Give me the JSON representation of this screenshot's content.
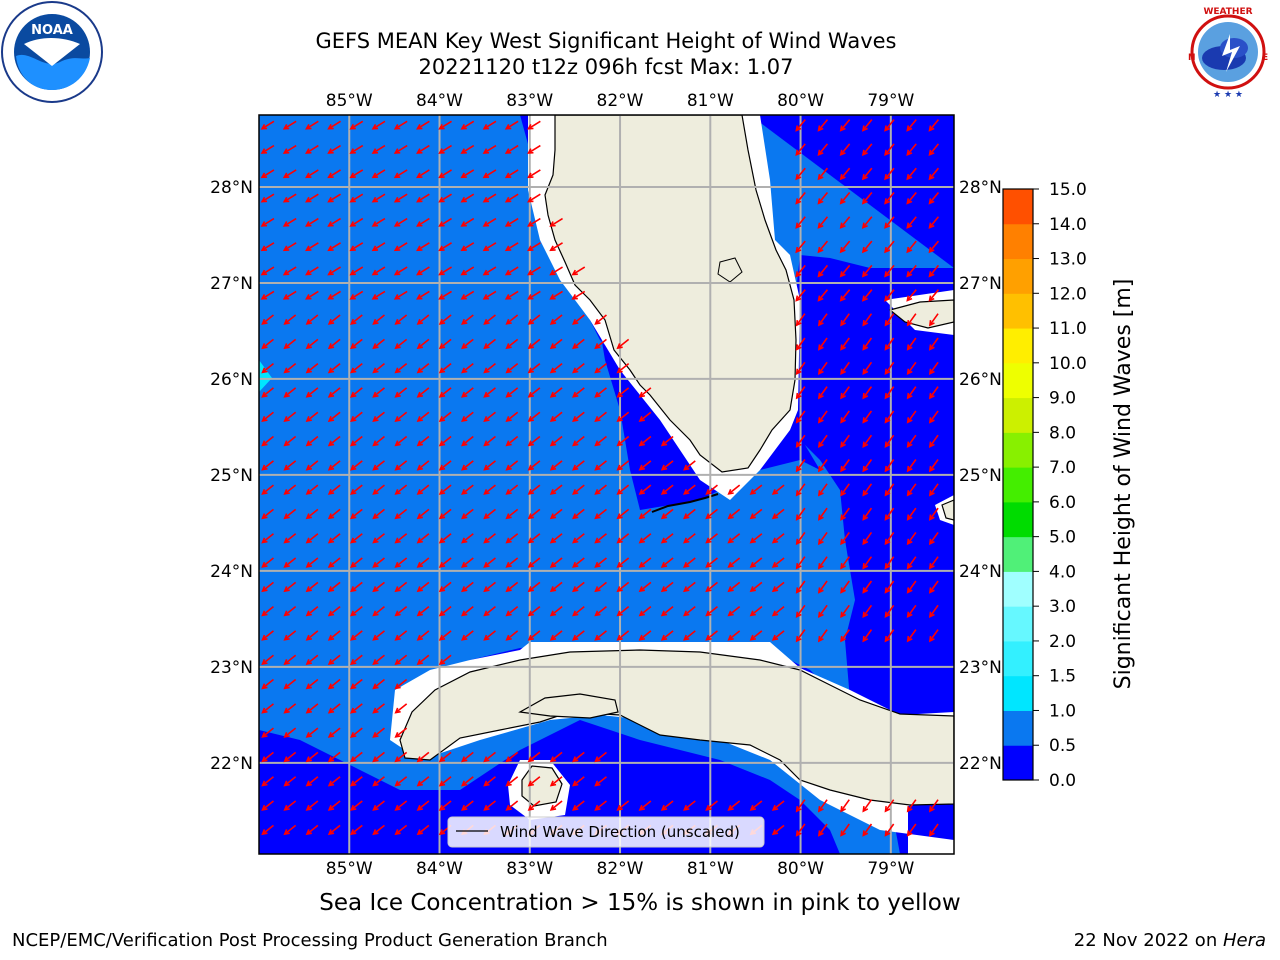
{
  "title": {
    "line1": "GEFS MEAN Key West Significant Height of Wind Waves",
    "line2": "20221120 t12z 096h fcst   Max: 1.07"
  },
  "map": {
    "region": "Key West",
    "lon_range": [
      -86,
      -78.3
    ],
    "lat_range": [
      21.05,
      28.75
    ],
    "lon_labels": [
      "85°W",
      "84°W",
      "83°W",
      "82°W",
      "81°W",
      "80°W",
      "79°W"
    ],
    "lat_labels": [
      "28°N",
      "27°N",
      "26°N",
      "25°N",
      "24°N",
      "23°N",
      "22°N"
    ],
    "grid": true,
    "land_color": "#eeeddd",
    "vector_color": "#ff0000",
    "dominant_direction": "from northeast",
    "legend": {
      "label": "Wind Wave Direction (unscaled)",
      "placement": "bottom-center"
    }
  },
  "colorbar": {
    "label": "Significant Height of Wind Waves [m]",
    "ticks": [
      "0.0",
      "0.5",
      "1.0",
      "1.5",
      "2.0",
      "3.0",
      "4.0",
      "5.0",
      "6.0",
      "7.0",
      "8.0",
      "9.0",
      "10.0",
      "11.0",
      "12.0",
      "13.0",
      "14.0",
      "15.0"
    ],
    "colors": [
      "#0000ff",
      "#0a78f0",
      "#00e6ff",
      "#33f0ff",
      "#66f8ff",
      "#a0ffff",
      "#50f078",
      "#00dc00",
      "#44ee00",
      "#88f000",
      "#ccf000",
      "#eeff00",
      "#ffee00",
      "#ffc000",
      "#ffa000",
      "#ff8000",
      "#ff5000",
      "#ff2000",
      "#ff0000"
    ]
  },
  "caption": "Sea Ice Concentration > 15% is shown in pink to yellow",
  "footer": {
    "left": "NCEP/EMC/Verification Post Processing Product Generation Branch",
    "right_prefix": "22 Nov 2022 on ",
    "right_machine": "Hera"
  },
  "logos": {
    "left": "noaa-logo",
    "right": "national-weather-service-logo"
  }
}
